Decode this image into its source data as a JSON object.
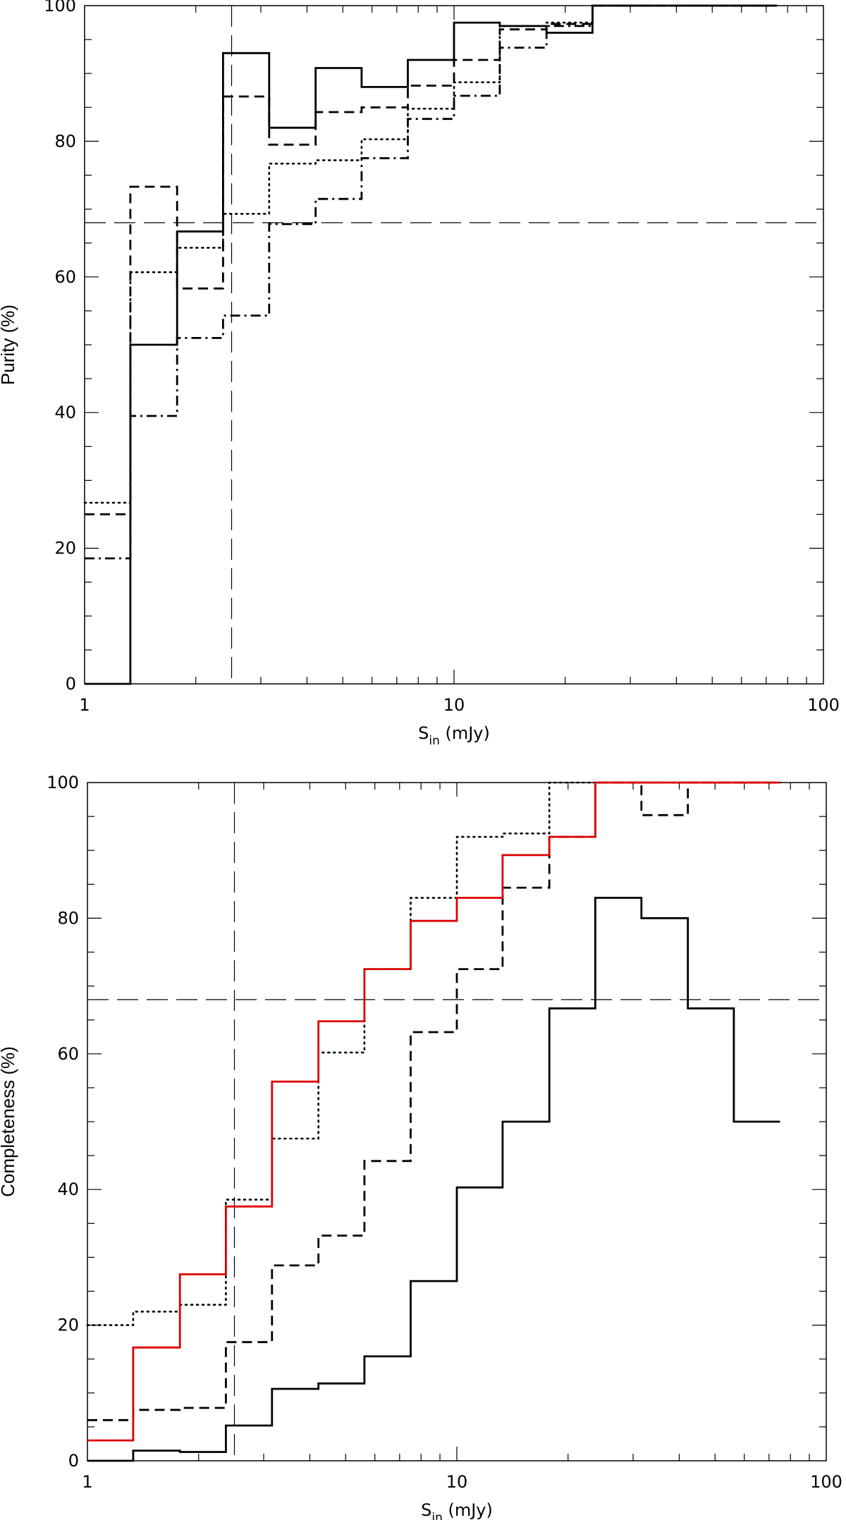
{
  "chart_data": [
    {
      "type": "line",
      "step": true,
      "xscale": "log",
      "xlim": [
        1,
        100
      ],
      "ylim": [
        0,
        100
      ],
      "xlabel": {
        "main": "S",
        "sub": "in",
        "unit": " (mJy)"
      },
      "ylabel": "Purity (%)",
      "xticks": [
        {
          "v": 1,
          "label": "1"
        },
        {
          "v": 10,
          "label": "10"
        },
        {
          "v": 100,
          "label": "100"
        }
      ],
      "yticks": [
        {
          "v": 0,
          "label": "0"
        },
        {
          "v": 20,
          "label": "20"
        },
        {
          "v": 40,
          "label": "40"
        },
        {
          "v": 60,
          "label": "60"
        },
        {
          "v": 80,
          "label": "80"
        },
        {
          "v": 100,
          "label": "100"
        }
      ],
      "bin_edges": [
        1.0,
        1.33,
        1.78,
        2.37,
        3.16,
        4.22,
        5.62,
        7.5,
        10.0,
        13.3,
        17.8,
        23.7,
        31.6,
        42.2,
        56.2,
        75.0
      ],
      "series": [
        {
          "style": "solid",
          "color": "#000000",
          "values": [
            0,
            50,
            66.7,
            93,
            82,
            90.8,
            88,
            92,
            97.5,
            97,
            96,
            100,
            100,
            100,
            100
          ]
        },
        {
          "style": "dashed",
          "color": "#000000",
          "values": [
            25,
            73.3,
            58.3,
            86.6,
            79.5,
            84.3,
            85,
            88.2,
            92,
            96.5,
            97.3,
            100,
            100,
            100,
            100
          ]
        },
        {
          "style": "dotted",
          "color": "#000000",
          "values": [
            26.7,
            60.7,
            64.3,
            69.3,
            76.7,
            77.2,
            80.3,
            84.8,
            88.7,
            97,
            97.5,
            100,
            100,
            100,
            100
          ]
        },
        {
          "style": "dashdot",
          "color": "#000000",
          "values": [
            18.5,
            39.5,
            51,
            54.3,
            67.8,
            71.5,
            77.5,
            83.3,
            86.7,
            93.8,
            97,
            100,
            100,
            100,
            100
          ]
        }
      ],
      "reference_lines": [
        {
          "orientation": "vertical",
          "x": 2.5,
          "style": "long-dash"
        },
        {
          "orientation": "horizontal",
          "y": 68,
          "style": "long-dash"
        }
      ]
    },
    {
      "type": "line",
      "step": true,
      "xscale": "log",
      "xlim": [
        1,
        100
      ],
      "ylim": [
        0,
        100
      ],
      "xlabel": {
        "main": "S",
        "sub": "in",
        "unit": " (mJy)"
      },
      "ylabel": "Completeness (%)",
      "xticks": [
        {
          "v": 1,
          "label": "1"
        },
        {
          "v": 10,
          "label": "10"
        },
        {
          "v": 100,
          "label": "100"
        }
      ],
      "yticks": [
        {
          "v": 0,
          "label": "0"
        },
        {
          "v": 20,
          "label": "20"
        },
        {
          "v": 40,
          "label": "40"
        },
        {
          "v": 60,
          "label": "60"
        },
        {
          "v": 80,
          "label": "80"
        },
        {
          "v": 100,
          "label": "100"
        }
      ],
      "bin_edges": [
        1.0,
        1.33,
        1.78,
        2.37,
        3.16,
        4.22,
        5.62,
        7.5,
        10.0,
        13.3,
        17.8,
        23.7,
        31.6,
        42.2,
        56.2,
        75.0
      ],
      "series": [
        {
          "style": "solid",
          "color": "#000000",
          "values": [
            0,
            1.5,
            1.3,
            5.2,
            10.6,
            11.4,
            15.4,
            26.5,
            40.3,
            50,
            66.7,
            83,
            80,
            66.7,
            50
          ]
        },
        {
          "style": "dashed",
          "color": "#000000",
          "values": [
            6,
            7.5,
            7.8,
            17.5,
            28.8,
            33.2,
            44.2,
            63.2,
            72.5,
            84.5,
            92,
            100,
            95.2,
            100,
            100
          ]
        },
        {
          "style": "dotted",
          "color": "#000000",
          "values": [
            20,
            22,
            23,
            38.5,
            47.5,
            60.2,
            72.5,
            83,
            92,
            92.5,
            100,
            100,
            100,
            100,
            100
          ]
        },
        {
          "style": "solid",
          "color": "#dd0000",
          "values": [
            3,
            16.7,
            27.5,
            37.5,
            55.9,
            64.8,
            72.5,
            79.6,
            83,
            89.3,
            92,
            100,
            100,
            100,
            100
          ]
        }
      ],
      "reference_lines": [
        {
          "orientation": "vertical",
          "x": 2.5,
          "style": "long-dash"
        },
        {
          "orientation": "horizontal",
          "y": 68,
          "style": "long-dash"
        }
      ]
    }
  ]
}
